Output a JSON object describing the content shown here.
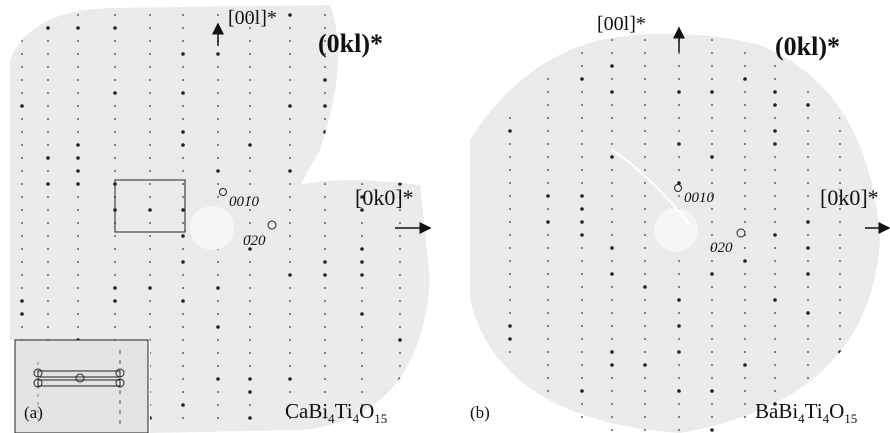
{
  "panels": [
    {
      "axis_up": "[00l]*",
      "plane": "(0kl)*",
      "axis_right": "[0k0]*",
      "spot_1": "0010",
      "spot_2": "020",
      "panel_label": "(a)",
      "formula": [
        "CaBi",
        "4",
        "Ti",
        "4",
        "O",
        "15"
      ]
    },
    {
      "axis_up": "[00l]*",
      "plane": "(0kl)*",
      "axis_right": "[0k0]*",
      "spot_1": "0010",
      "spot_2": "020",
      "panel_label": "(b)",
      "formula": [
        "BaBi",
        "4",
        "Ti",
        "4",
        "O",
        "15"
      ]
    }
  ]
}
